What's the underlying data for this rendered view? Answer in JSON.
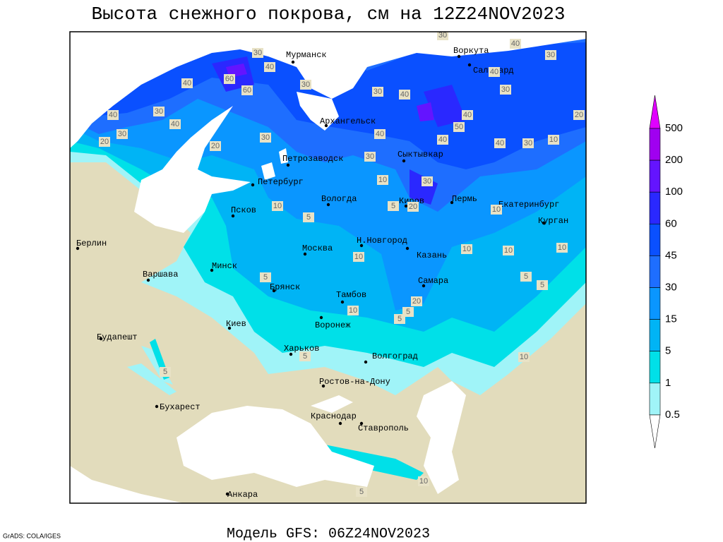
{
  "header": {
    "title": "Высота снежного покрова, см на 12Z24NOV2023"
  },
  "cities": [
    "Мурманск",
    "Воркута",
    "Салехард",
    "Архангельск",
    "Петрозаводск",
    "Сыктывкар",
    "Петербург",
    "Вологда",
    "Киров",
    "Пермь",
    "Екатеринбург",
    "Псков",
    "Курган",
    "Берлин",
    "Н.Новгород",
    "Москва",
    "Казань",
    "Варшава",
    "Минск",
    "Брянск",
    "Самара",
    "Тамбов",
    "Воронеж",
    "Киев",
    "Будапешт",
    "Харьков",
    "Волгоград",
    "Ростов-на-Дону",
    "Бухарест",
    "Краснодар",
    "Ставрополь",
    "Анкара"
  ],
  "contour_labels": [
    30,
    30,
    40,
    30,
    40,
    40,
    40,
    30,
    60,
    60,
    30,
    30,
    40,
    30,
    40,
    40,
    40,
    50,
    20,
    40,
    30,
    20,
    30,
    40,
    40,
    30,
    20,
    10,
    30,
    10,
    30,
    10,
    5,
    20,
    10,
    5,
    10,
    10,
    10,
    10,
    5,
    5,
    5,
    20,
    10,
    5,
    5,
    5,
    10,
    5,
    10,
    5
  ],
  "legend": {
    "levels": [
      500,
      200,
      100,
      60,
      45,
      30,
      15,
      5,
      1,
      0.5
    ],
    "colors": [
      "#e000ff",
      "#a000f0",
      "#6414ff",
      "#2a28ff",
      "#0a50ff",
      "#1e6eff",
      "#0a96ff",
      "#00b4f5",
      "#00e0e8",
      "#a0f4f8",
      "#ffffff"
    ]
  },
  "footer": {
    "model": "Модель GFS: 06Z24NOV2023",
    "credit": "GrADS: COLA/IGES"
  }
}
